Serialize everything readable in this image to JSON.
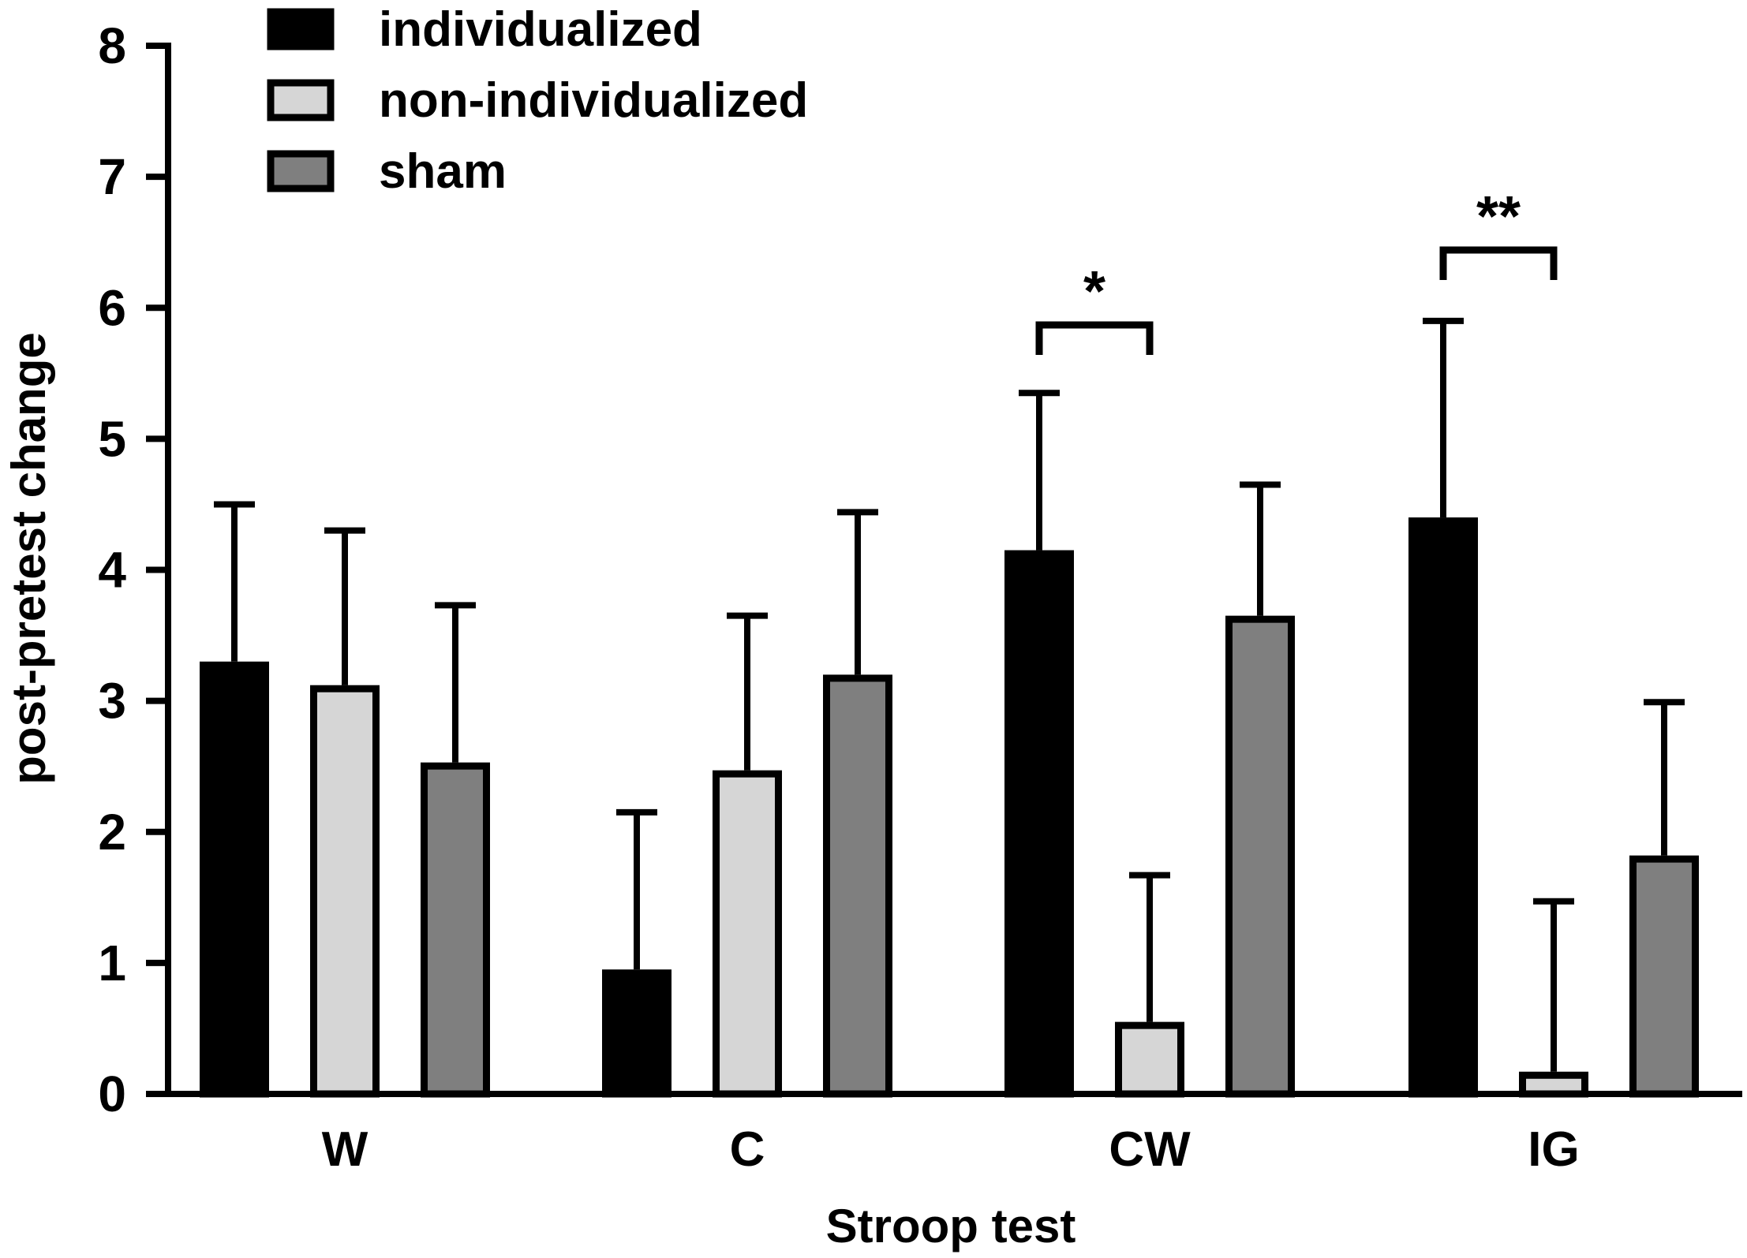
{
  "chart_data": {
    "type": "bar",
    "title": "",
    "xlabel": "Stroop test",
    "ylabel": "post-pretest change",
    "ylim": [
      0,
      8
    ],
    "yticks": [
      "0",
      "1",
      "2",
      "3",
      "4",
      "5",
      "6",
      "7",
      "8"
    ],
    "grid": false,
    "legend_position": "top-left",
    "categories": [
      "W",
      "C",
      "CW",
      "IG"
    ],
    "series": [
      {
        "name": "individualized",
        "color": "#000000",
        "values": [
          3.3,
          0.95,
          4.15,
          4.4
        ],
        "errors": [
          1.2,
          1.2,
          1.2,
          1.5
        ]
      },
      {
        "name": "non-individualized",
        "color": "#d6d6d6",
        "values": [
          3.12,
          2.47,
          0.55,
          0.17
        ],
        "errors": [
          1.18,
          1.18,
          1.12,
          1.3
        ]
      },
      {
        "name": "sham",
        "color": "#7f7f7f",
        "values": [
          2.53,
          3.2,
          3.65,
          1.82
        ],
        "errors": [
          1.2,
          1.24,
          1.0,
          1.17
        ]
      }
    ],
    "significance": [
      {
        "category": "CW",
        "between": [
          "individualized",
          "non-individualized"
        ],
        "label": "*"
      },
      {
        "category": "IG",
        "between": [
          "individualized",
          "non-individualized"
        ],
        "label": "**"
      }
    ]
  }
}
